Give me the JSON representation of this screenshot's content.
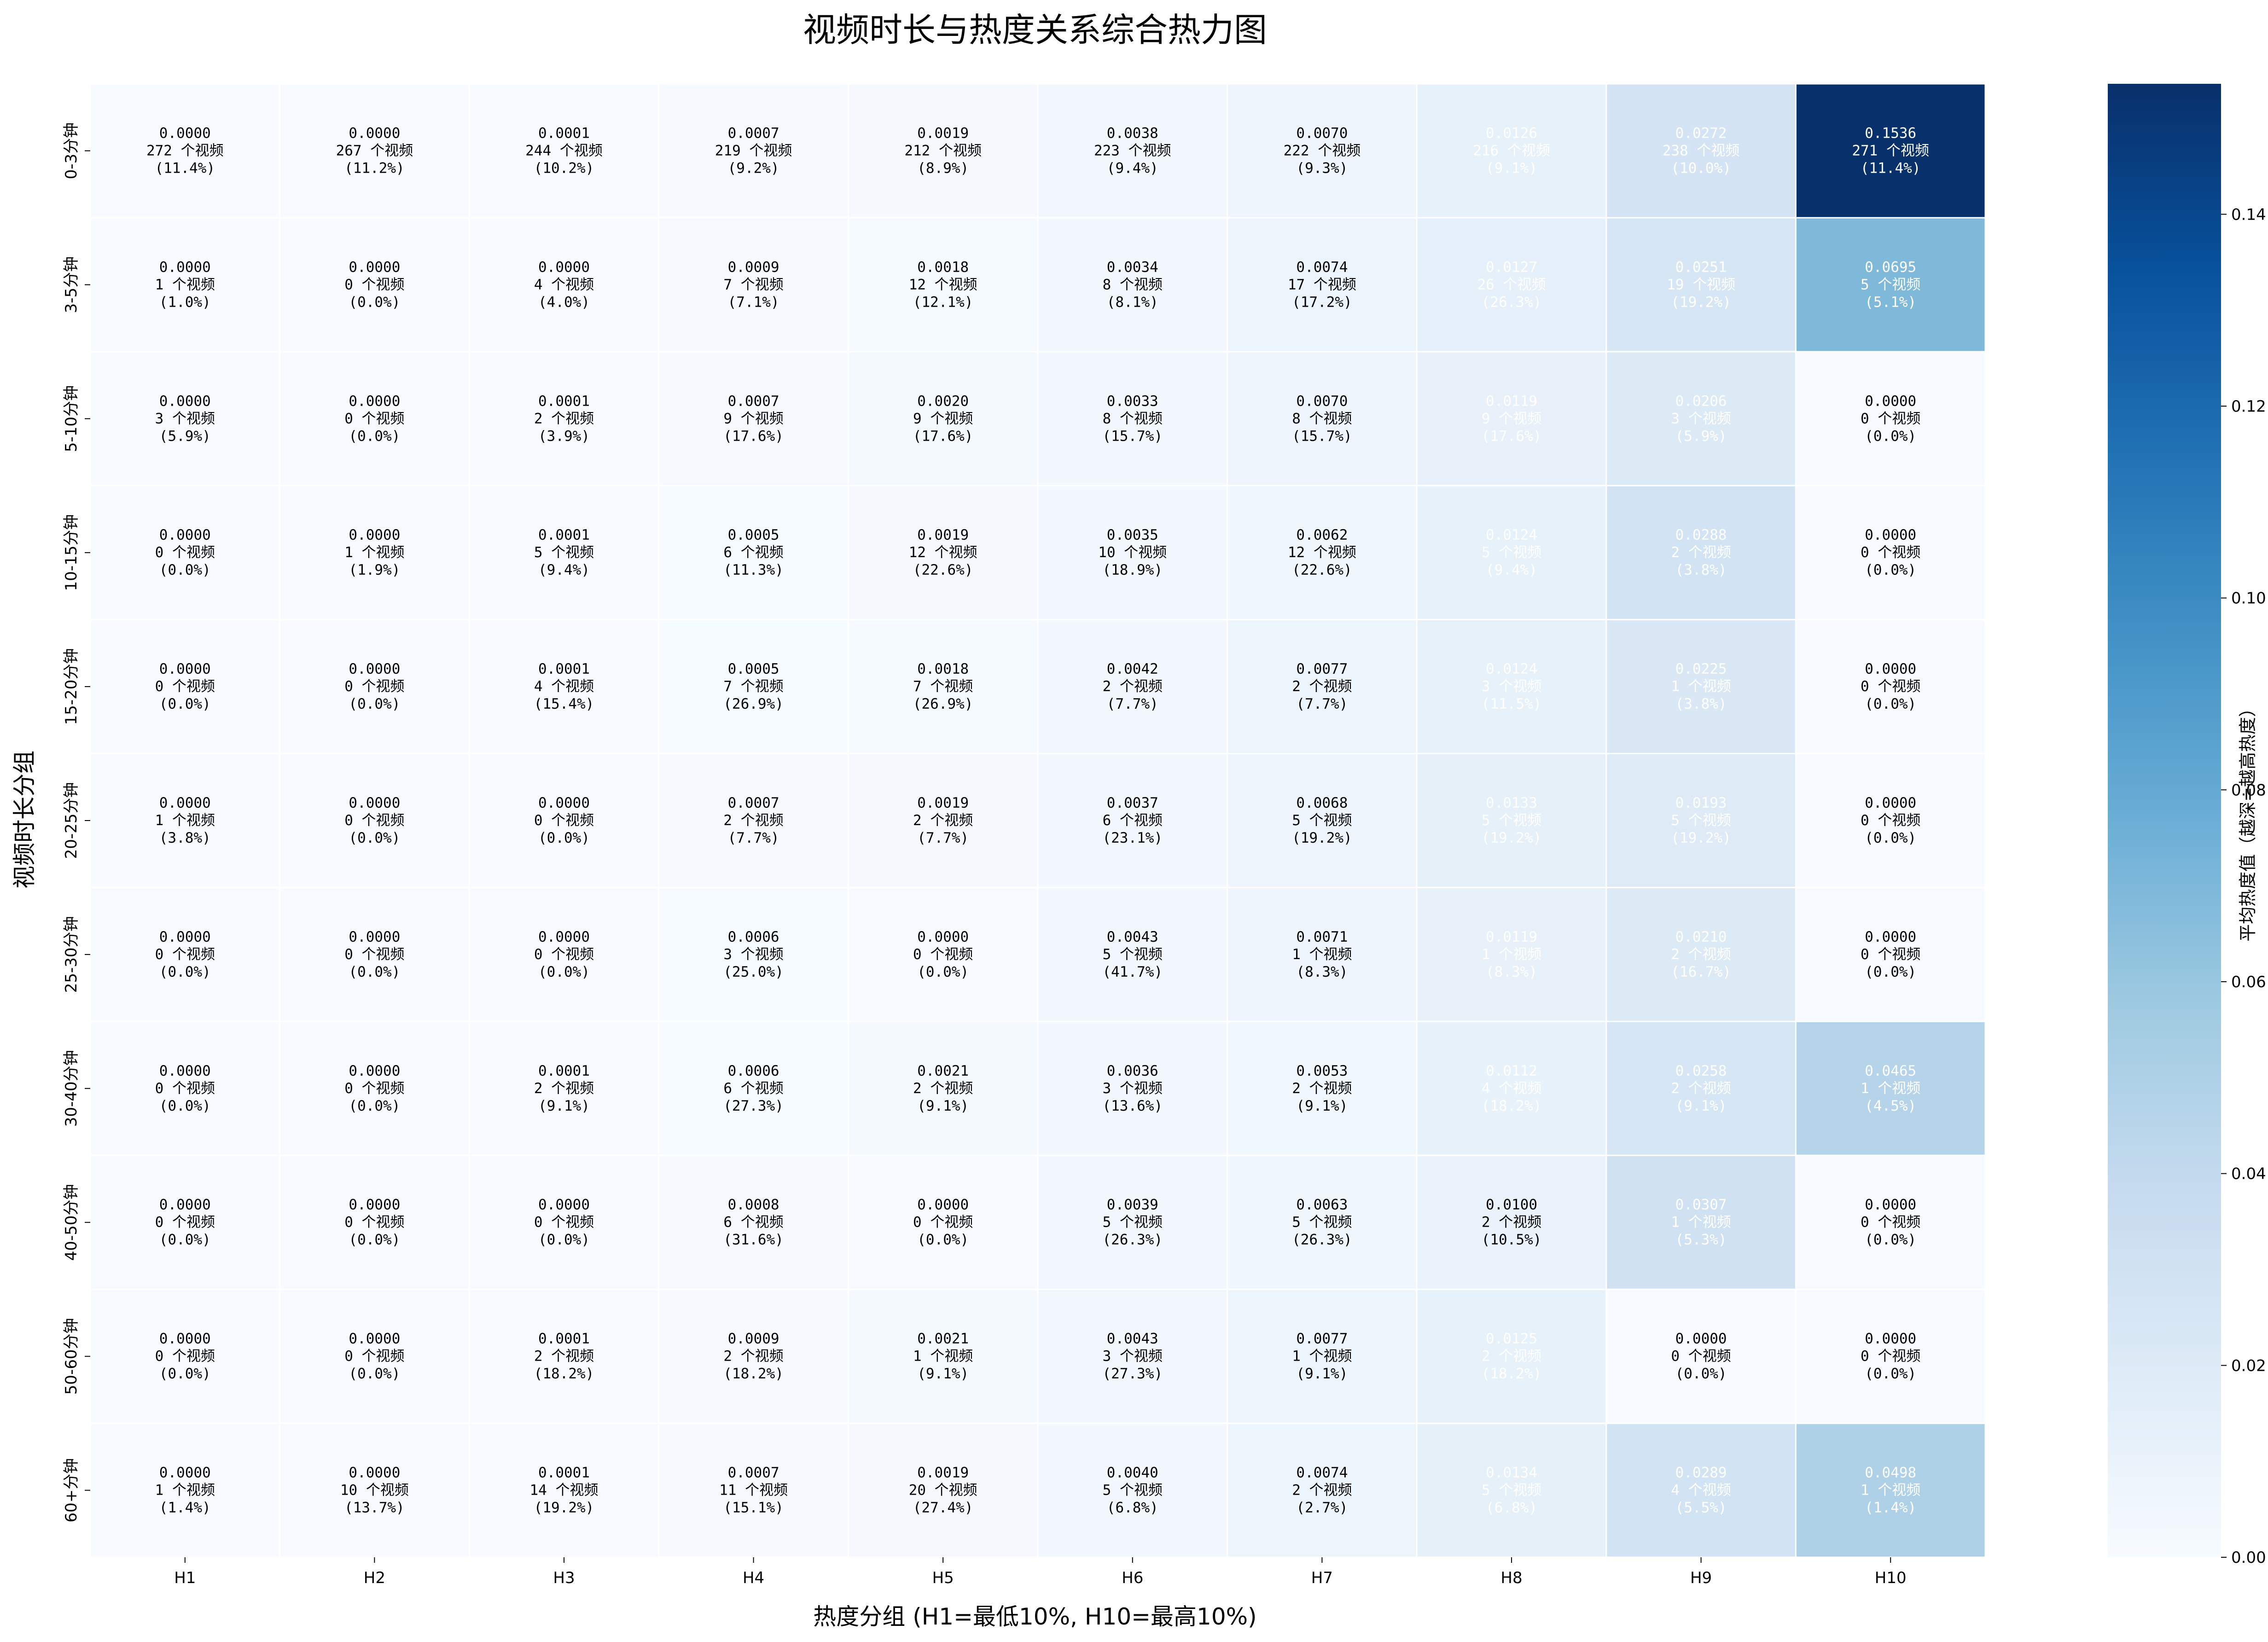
{
  "chart_data": {
    "type": "heatmap",
    "title": "视频时长与热度关系综合热力图",
    "xlabel": "热度分组 (H1=最低10%, H10=最高10%)",
    "ylabel": "视频时长分组",
    "x_categories": [
      "H1",
      "H2",
      "H3",
      "H4",
      "H5",
      "H6",
      "H7",
      "H8",
      "H9",
      "H10"
    ],
    "y_categories": [
      "0-3分钟",
      "3-5分钟",
      "5-10分钟",
      "10-15分钟",
      "15-20分钟",
      "20-25分钟",
      "25-30分钟",
      "30-40分钟",
      "40-50分钟",
      "50-60分钟",
      "60+分钟"
    ],
    "count_suffix": " 个视频",
    "values": [
      [
        "0.0000",
        "0.0000",
        "0.0001",
        "0.0007",
        "0.0019",
        "0.0038",
        "0.0070",
        "0.0126",
        "0.0272",
        "0.1536"
      ],
      [
        "0.0000",
        "0.0000",
        "0.0000",
        "0.0009",
        "0.0018",
        "0.0034",
        "0.0074",
        "0.0127",
        "0.0251",
        "0.0695"
      ],
      [
        "0.0000",
        "0.0000",
        "0.0001",
        "0.0007",
        "0.0020",
        "0.0033",
        "0.0070",
        "0.0119",
        "0.0206",
        "0.0000"
      ],
      [
        "0.0000",
        "0.0000",
        "0.0001",
        "0.0005",
        "0.0019",
        "0.0035",
        "0.0062",
        "0.0124",
        "0.0288",
        "0.0000"
      ],
      [
        "0.0000",
        "0.0000",
        "0.0001",
        "0.0005",
        "0.0018",
        "0.0042",
        "0.0077",
        "0.0124",
        "0.0225",
        "0.0000"
      ],
      [
        "0.0000",
        "0.0000",
        "0.0000",
        "0.0007",
        "0.0019",
        "0.0037",
        "0.0068",
        "0.0133",
        "0.0193",
        "0.0000"
      ],
      [
        "0.0000",
        "0.0000",
        "0.0000",
        "0.0006",
        "0.0000",
        "0.0043",
        "0.0071",
        "0.0119",
        "0.0210",
        "0.0000"
      ],
      [
        "0.0000",
        "0.0000",
        "0.0001",
        "0.0006",
        "0.0021",
        "0.0036",
        "0.0053",
        "0.0112",
        "0.0258",
        "0.0465"
      ],
      [
        "0.0000",
        "0.0000",
        "0.0000",
        "0.0008",
        "0.0000",
        "0.0039",
        "0.0063",
        "0.0100",
        "0.0307",
        "0.0000"
      ],
      [
        "0.0000",
        "0.0000",
        "0.0001",
        "0.0009",
        "0.0021",
        "0.0043",
        "0.0077",
        "0.0125",
        "0.0000",
        "0.0000"
      ],
      [
        "0.0000",
        "0.0000",
        "0.0001",
        "0.0007",
        "0.0019",
        "0.0040",
        "0.0074",
        "0.0134",
        "0.0289",
        "0.0498"
      ]
    ],
    "counts": [
      [
        272,
        267,
        244,
        219,
        212,
        223,
        222,
        216,
        238,
        271
      ],
      [
        1,
        0,
        4,
        7,
        12,
        8,
        17,
        26,
        19,
        5
      ],
      [
        3,
        0,
        2,
        9,
        9,
        8,
        8,
        9,
        3,
        0
      ],
      [
        0,
        1,
        5,
        6,
        12,
        10,
        12,
        5,
        2,
        0
      ],
      [
        0,
        0,
        4,
        7,
        7,
        2,
        2,
        3,
        1,
        0
      ],
      [
        1,
        0,
        0,
        2,
        2,
        6,
        5,
        5,
        5,
        0
      ],
      [
        0,
        0,
        0,
        3,
        0,
        5,
        1,
        1,
        2,
        0
      ],
      [
        0,
        0,
        2,
        6,
        2,
        3,
        2,
        4,
        2,
        1
      ],
      [
        0,
        0,
        0,
        6,
        0,
        5,
        5,
        2,
        1,
        0
      ],
      [
        0,
        0,
        2,
        2,
        1,
        3,
        1,
        2,
        0,
        0
      ],
      [
        1,
        10,
        14,
        11,
        20,
        5,
        2,
        5,
        4,
        1
      ]
    ],
    "percents": [
      [
        "(11.4%)",
        "(11.2%)",
        "(10.2%)",
        "(9.2%)",
        "(8.9%)",
        "(9.4%)",
        "(9.3%)",
        "(9.1%)",
        "(10.0%)",
        "(11.4%)"
      ],
      [
        "(1.0%)",
        "(0.0%)",
        "(4.0%)",
        "(7.1%)",
        "(12.1%)",
        "(8.1%)",
        "(17.2%)",
        "(26.3%)",
        "(19.2%)",
        "(5.1%)"
      ],
      [
        "(5.9%)",
        "(0.0%)",
        "(3.9%)",
        "(17.6%)",
        "(17.6%)",
        "(15.7%)",
        "(15.7%)",
        "(17.6%)",
        "(5.9%)",
        "(0.0%)"
      ],
      [
        "(0.0%)",
        "(1.9%)",
        "(9.4%)",
        "(11.3%)",
        "(22.6%)",
        "(18.9%)",
        "(22.6%)",
        "(9.4%)",
        "(3.8%)",
        "(0.0%)"
      ],
      [
        "(0.0%)",
        "(0.0%)",
        "(15.4%)",
        "(26.9%)",
        "(26.9%)",
        "(7.7%)",
        "(7.7%)",
        "(11.5%)",
        "(3.8%)",
        "(0.0%)"
      ],
      [
        "(3.8%)",
        "(0.0%)",
        "(0.0%)",
        "(7.7%)",
        "(7.7%)",
        "(23.1%)",
        "(19.2%)",
        "(19.2%)",
        "(19.2%)",
        "(0.0%)"
      ],
      [
        "(0.0%)",
        "(0.0%)",
        "(0.0%)",
        "(25.0%)",
        "(0.0%)",
        "(41.7%)",
        "(8.3%)",
        "(8.3%)",
        "(16.7%)",
        "(0.0%)"
      ],
      [
        "(0.0%)",
        "(0.0%)",
        "(9.1%)",
        "(27.3%)",
        "(9.1%)",
        "(13.6%)",
        "(9.1%)",
        "(18.2%)",
        "(9.1%)",
        "(4.5%)"
      ],
      [
        "(0.0%)",
        "(0.0%)",
        "(0.0%)",
        "(31.6%)",
        "(0.0%)",
        "(26.3%)",
        "(26.3%)",
        "(10.5%)",
        "(5.3%)",
        "(0.0%)"
      ],
      [
        "(0.0%)",
        "(0.0%)",
        "(18.2%)",
        "(18.2%)",
        "(9.1%)",
        "(27.3%)",
        "(9.1%)",
        "(18.2%)",
        "(0.0%)",
        "(0.0%)"
      ],
      [
        "(1.4%)",
        "(13.7%)",
        "(19.2%)",
        "(15.1%)",
        "(27.4%)",
        "(6.8%)",
        "(2.7%)",
        "(6.8%)",
        "(5.5%)",
        "(1.4%)"
      ]
    ],
    "colorbar": {
      "label": "平均热度值（越深=越高热度）",
      "range": [
        0,
        0.1536
      ],
      "ticks": [
        "0.00",
        "0.02",
        "0.04",
        "0.06",
        "0.08",
        "0.10",
        "0.12",
        "0.14"
      ],
      "tick_values": [
        0,
        0.02,
        0.04,
        0.06,
        0.08,
        0.1,
        0.12,
        0.14
      ]
    },
    "colormap": "Blues",
    "colormap_stops": [
      "#f7fbff",
      "#deebf7",
      "#c6dbef",
      "#9ecae1",
      "#6baed6",
      "#4292c6",
      "#2171b5",
      "#08519c",
      "#08306b"
    ],
    "grid": "white cell borders",
    "legend": "colorbar-right"
  }
}
